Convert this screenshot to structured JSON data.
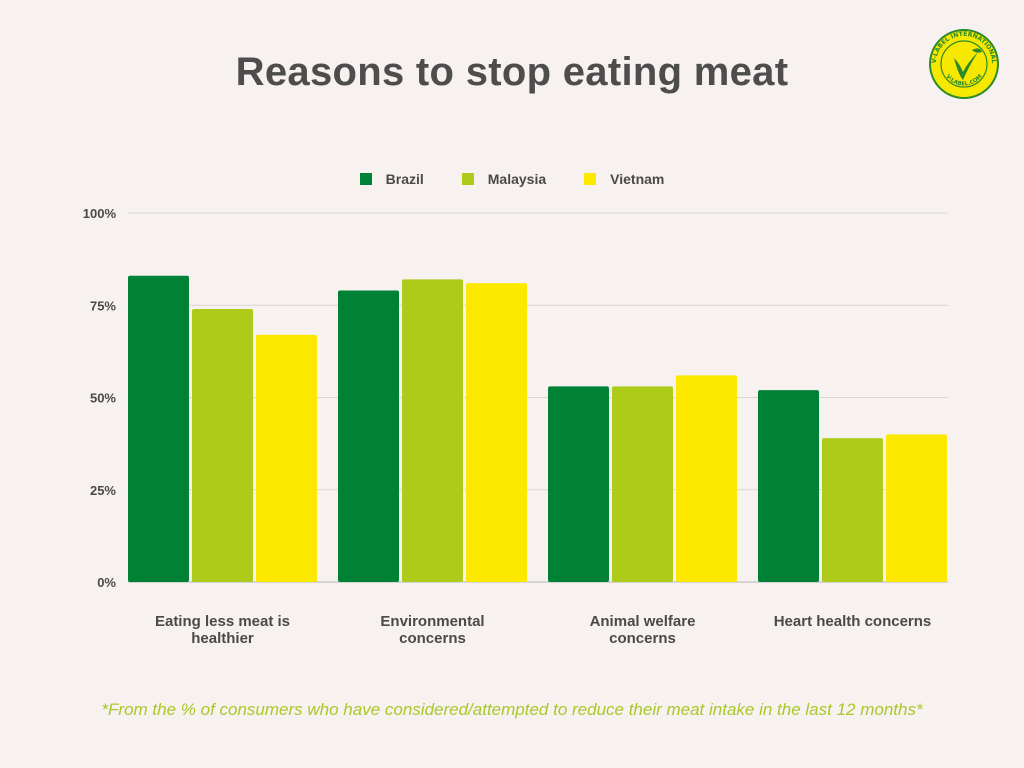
{
  "title": "Reasons to stop eating meat",
  "badge": {
    "ring_text": "V-LABEL INTERNATIONAL",
    "bottom_text": "V-LABEL.COM",
    "letter": "V",
    "icon": "v-label-logo-icon",
    "colors": {
      "fill": "#f7e800",
      "ring": "#2c8a2a"
    }
  },
  "footnote": "*From the % of consumers who have considered/attempted to reduce their meat intake in the last 12 months*",
  "chart_data": {
    "type": "bar",
    "title": "Reasons to stop eating meat",
    "categories": [
      [
        "Eating less meat is",
        "healthier"
      ],
      [
        "Environmental",
        "concerns"
      ],
      [
        "Animal welfare",
        "concerns"
      ],
      [
        "Heart health concerns"
      ]
    ],
    "series": [
      {
        "name": "Brazil",
        "color": "#008236",
        "values": [
          83,
          79,
          53,
          52
        ]
      },
      {
        "name": "Malaysia",
        "color": "#aecb1a",
        "values": [
          74,
          82,
          53,
          39
        ]
      },
      {
        "name": "Vietnam",
        "color": "#fde800",
        "values": [
          67,
          81,
          56,
          40
        ]
      }
    ],
    "yticks": [
      "0%",
      "25%",
      "50%",
      "75%",
      "100%"
    ],
    "ytick_values": [
      0,
      25,
      50,
      75,
      100
    ],
    "ylim": [
      0,
      100
    ],
    "grid": true,
    "legend_position": "top-center"
  }
}
